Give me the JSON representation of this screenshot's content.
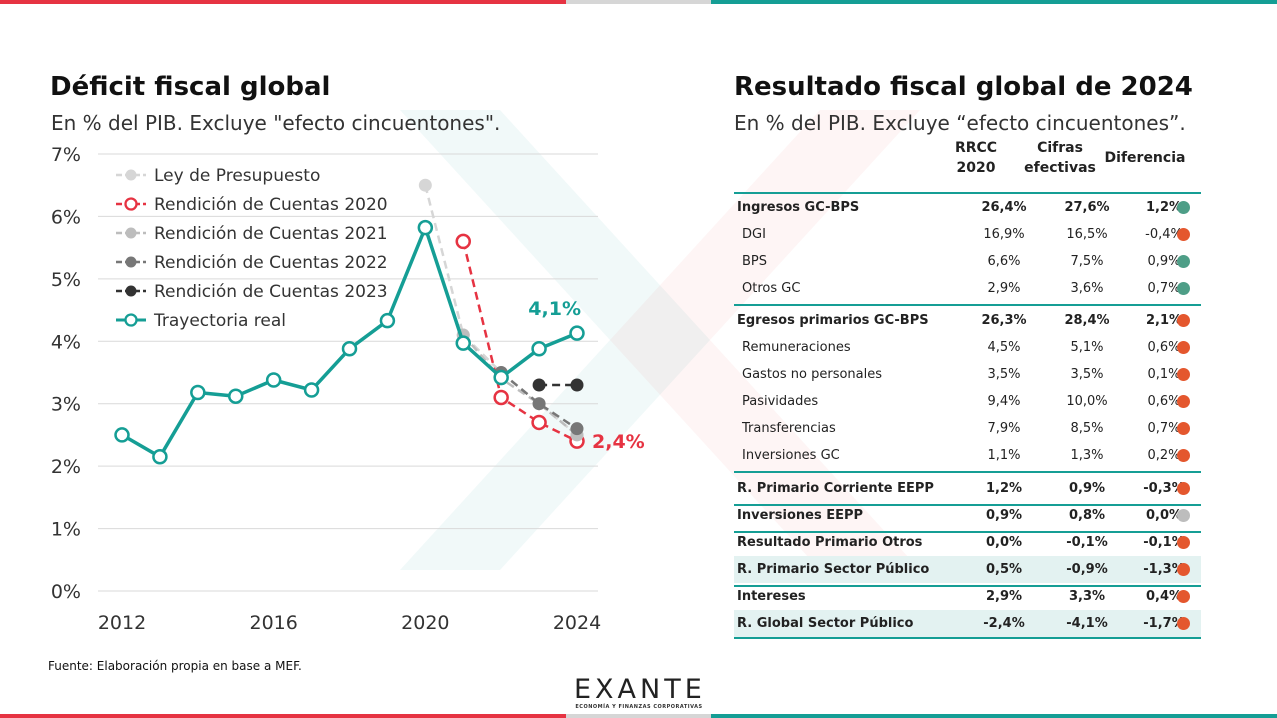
{
  "left": {
    "title": "Déficit fiscal global",
    "subtitle": "En % del PIB. Excluye \"efecto cincuentones\"."
  },
  "right": {
    "title": "Resultado fiscal global de 2024",
    "subtitle": "En % del PIB. Excluye “efecto cincuentones”."
  },
  "source": "Fuente: Elaboración propia en base a MEF.",
  "logo": {
    "name": "EXANTE",
    "tagline": "ECONOMÍA Y FINANZAS CORPORATIVAS"
  },
  "colors": {
    "red": "#e63342",
    "teal": "#159e95",
    "grey": "#d6d6d6",
    "dot_green": "#4e9e87",
    "dot_orange": "#e4572e",
    "dot_grey": "#bdbdbd"
  },
  "chart_data": {
    "type": "line",
    "ylim": [
      0,
      7
    ],
    "y_ticks": [
      "0%",
      "1%",
      "2%",
      "3%",
      "4%",
      "5%",
      "6%",
      "7%"
    ],
    "x_ticks": [
      "2012",
      "2016",
      "2020",
      "2024"
    ],
    "xlim": [
      2012,
      2024
    ],
    "grid": true,
    "legend_position": "top-left",
    "series": [
      {
        "name": "Ley de Presupuesto",
        "color": "#d6d6d6",
        "dash": true,
        "x": [
          2020,
          2021,
          2022,
          2023,
          2024
        ],
        "y": [
          6.5,
          4.1,
          3.5,
          3.0,
          2.5
        ]
      },
      {
        "name": "Rendición de Cuentas 2020",
        "color": "#e63342",
        "dash": true,
        "hollow": true,
        "x": [
          2021,
          2022,
          2023,
          2024
        ],
        "y": [
          5.6,
          3.1,
          2.7,
          2.4
        ]
      },
      {
        "name": "Rendición de Cuentas 2021",
        "color": "#bdbdbd",
        "dash": true,
        "x": [
          2021,
          2022,
          2023,
          2024
        ],
        "y": [
          4.1,
          3.4,
          3.0,
          2.5
        ]
      },
      {
        "name": "Rendición de Cuentas 2022",
        "color": "#777777",
        "dash": true,
        "x": [
          2022,
          2023,
          2024
        ],
        "y": [
          3.5,
          3.0,
          2.6
        ]
      },
      {
        "name": "Rendición de Cuentas 2023",
        "color": "#333333",
        "dash": true,
        "x": [
          2023,
          2024
        ],
        "y": [
          3.3,
          3.3
        ]
      },
      {
        "name": "Trayectoria real",
        "color": "#159e95",
        "dash": false,
        "hollow": true,
        "x": [
          2012,
          2013,
          2014,
          2015,
          2016,
          2017,
          2018,
          2019,
          2020,
          2021,
          2022,
          2023,
          2024
        ],
        "y": [
          2.5,
          2.15,
          3.18,
          3.12,
          3.38,
          3.22,
          3.88,
          4.33,
          5.82,
          3.97,
          3.42,
          3.88,
          4.13
        ]
      }
    ],
    "annotations": [
      {
        "text": "4,1%",
        "series": "Trayectoria real",
        "color": "#159e95"
      },
      {
        "text": "2,4%",
        "series": "Rendición de Cuentas 2020",
        "color": "#e63342"
      }
    ]
  },
  "table": {
    "headers": [
      "RRCC\n2020",
      "Cifras\nefectivas",
      "Diferencia"
    ],
    "rows": [
      {
        "label": "Ingresos GC-BPS",
        "rrcc": "26,4%",
        "efectivas": "27,6%",
        "dif": "1,2%",
        "bold": true,
        "sub": false,
        "shade": false,
        "dot": "green"
      },
      {
        "label": "DGI",
        "rrcc": "16,9%",
        "efectivas": "16,5%",
        "dif": "-0,4%",
        "bold": false,
        "sub": true,
        "shade": false,
        "dot": "orange"
      },
      {
        "label": "BPS",
        "rrcc": "6,6%",
        "efectivas": "7,5%",
        "dif": "0,9%",
        "bold": false,
        "sub": true,
        "shade": false,
        "dot": "green"
      },
      {
        "label": "Otros GC",
        "rrcc": "2,9%",
        "efectivas": "3,6%",
        "dif": "0,7%",
        "bold": false,
        "sub": true,
        "shade": false,
        "dot": "green"
      },
      {
        "label": "Egresos primarios GC-BPS",
        "rrcc": "26,3%",
        "efectivas": "28,4%",
        "dif": "2,1%",
        "bold": true,
        "sub": false,
        "shade": false,
        "dot": "orange"
      },
      {
        "label": "Remuneraciones",
        "rrcc": "4,5%",
        "efectivas": "5,1%",
        "dif": "0,6%",
        "bold": false,
        "sub": true,
        "shade": false,
        "dot": "orange"
      },
      {
        "label": "Gastos no personales",
        "rrcc": "3,5%",
        "efectivas": "3,5%",
        "dif": "0,1%",
        "bold": false,
        "sub": true,
        "shade": false,
        "dot": "orange"
      },
      {
        "label": "Pasividades",
        "rrcc": "9,4%",
        "efectivas": "10,0%",
        "dif": "0,6%",
        "bold": false,
        "sub": true,
        "shade": false,
        "dot": "orange"
      },
      {
        "label": "Transferencias",
        "rrcc": "7,9%",
        "efectivas": "8,5%",
        "dif": "0,7%",
        "bold": false,
        "sub": true,
        "shade": false,
        "dot": "orange"
      },
      {
        "label": "Inversiones GC",
        "rrcc": "1,1%",
        "efectivas": "1,3%",
        "dif": "0,2%",
        "bold": false,
        "sub": true,
        "shade": false,
        "dot": "orange"
      },
      {
        "label": "R. Primario Corriente EEPP",
        "rrcc": "1,2%",
        "efectivas": "0,9%",
        "dif": "-0,3%",
        "bold": true,
        "sub": false,
        "shade": false,
        "dot": "orange"
      },
      {
        "label": "Inversiones EEPP",
        "rrcc": "0,9%",
        "efectivas": "0,8%",
        "dif": "0,0%",
        "bold": true,
        "sub": false,
        "shade": false,
        "dot": "grey"
      },
      {
        "label": "Resultado Primario Otros",
        "rrcc": "0,0%",
        "efectivas": "-0,1%",
        "dif": "-0,1%",
        "bold": true,
        "sub": false,
        "shade": false,
        "dot": "orange"
      },
      {
        "label": "R. Primario Sector Público",
        "rrcc": "0,5%",
        "efectivas": "-0,9%",
        "dif": "-1,3%",
        "bold": true,
        "sub": false,
        "shade": true,
        "dot": "orange"
      },
      {
        "label": "Intereses",
        "rrcc": "2,9%",
        "efectivas": "3,3%",
        "dif": "0,4%",
        "bold": true,
        "sub": false,
        "shade": false,
        "dot": "orange"
      },
      {
        "label": "R. Global Sector Público",
        "rrcc": "-2,4%",
        "efectivas": "-4,1%",
        "dif": "-1,7%",
        "bold": true,
        "sub": false,
        "shade": true,
        "dot": "orange"
      }
    ]
  }
}
